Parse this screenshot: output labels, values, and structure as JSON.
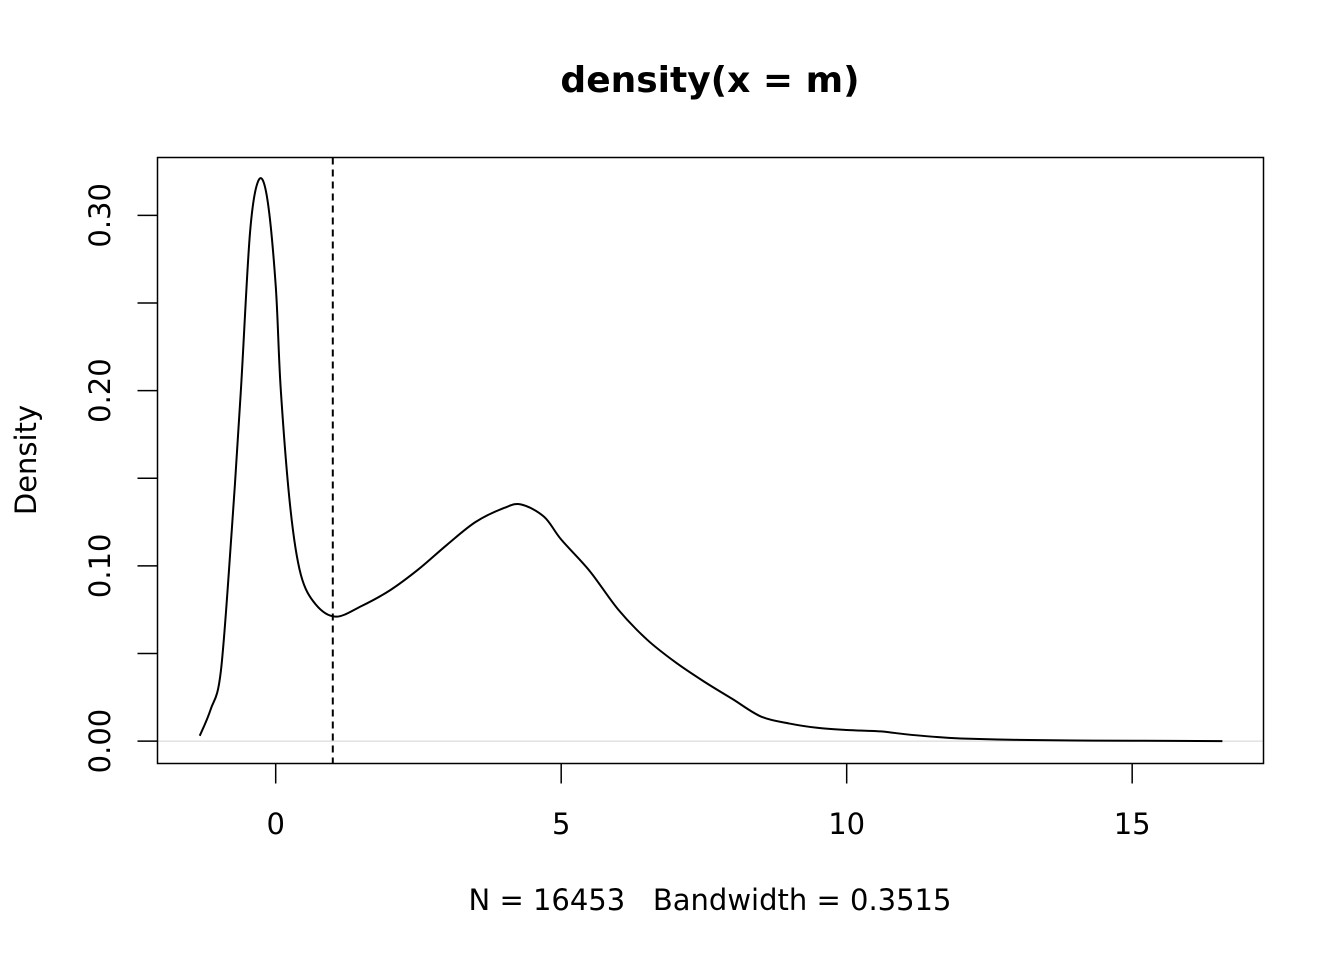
{
  "chart_data": {
    "type": "line",
    "title": "density(x = m)",
    "xlabel": "N = 16453   Bandwidth = 0.3515",
    "ylabel": "Density",
    "xlim": [
      -2.07,
      17.3
    ],
    "ylim": [
      -0.0128,
      0.333
    ],
    "x_ticks": [
      0,
      5,
      10,
      15
    ],
    "x_tick_labels": [
      "0",
      "5",
      "10",
      "15"
    ],
    "y_ticks": [
      0,
      0.05,
      0.1,
      0.15,
      0.2,
      0.25,
      0.3
    ],
    "y_tick_labels": [
      "0.00",
      "",
      "0.10",
      "",
      "0.20",
      "",
      "0.30"
    ],
    "grid": false,
    "zero_line_color": "#d3d3d3",
    "vertical_line": {
      "x": 1.0,
      "style": "dashed"
    },
    "series": [
      {
        "color": "#000000",
        "x": [
          -1.33,
          -1.14,
          -0.96,
          -0.77,
          -0.61,
          -0.45,
          -0.3,
          -0.15,
          0.0,
          0.09,
          0.26,
          0.44,
          0.7,
          1.05,
          1.5,
          2.0,
          2.5,
          3.0,
          3.5,
          4.0,
          4.3,
          4.7,
          5.0,
          5.5,
          6.0,
          6.5,
          7.0,
          7.5,
          8.0,
          8.5,
          9.0,
          9.5,
          10.0,
          10.6,
          11.0,
          11.5,
          12.0,
          13.0,
          14.0,
          15.0,
          16.58
        ],
        "y": [
          0.003,
          0.018,
          0.04,
          0.12,
          0.2,
          0.29,
          0.32,
          0.31,
          0.26,
          0.2,
          0.132,
          0.095,
          0.078,
          0.071,
          0.077,
          0.086,
          0.098,
          0.112,
          0.125,
          0.133,
          0.135,
          0.128,
          0.115,
          0.097,
          0.075,
          0.058,
          0.045,
          0.034,
          0.024,
          0.014,
          0.01,
          0.0075,
          0.0063,
          0.0055,
          0.004,
          0.0025,
          0.0015,
          0.0007,
          0.0003,
          0.0002,
          0.0
        ]
      }
    ]
  }
}
